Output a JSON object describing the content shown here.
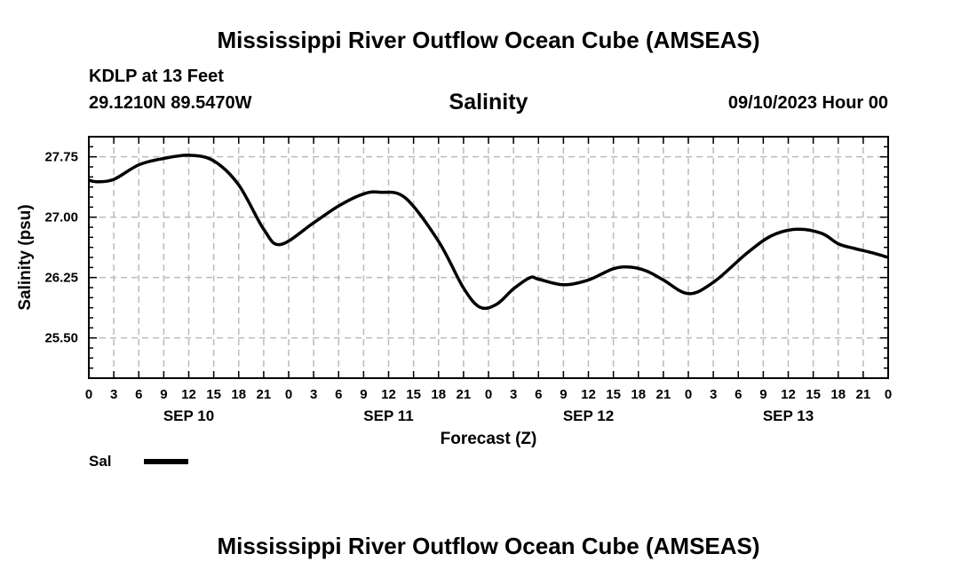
{
  "page_title": "Mississippi River Outflow Ocean Cube (AMSEAS)",
  "footer_title": "Mississippi River Outflow Ocean Cube (AMSEAS)",
  "station": "KDLP at 13 Feet",
  "coordinates": "29.1210N  89.5470W",
  "variable_title": "Salinity",
  "datetime": "09/10/2023 Hour 00",
  "colors": {
    "line": "#000000",
    "grid": "#bbbbbb",
    "frame": "#000000"
  },
  "chart_data": {
    "type": "line",
    "title": "Salinity",
    "xlabel": "Forecast (Z)",
    "ylabel": "Salinity (psu)",
    "xlim": [
      0,
      96
    ],
    "ylim": [
      25.0,
      28.0
    ],
    "yticks": [
      25.5,
      26.25,
      27.0,
      27.75
    ],
    "ytick_labels": [
      "25.50",
      "26.25",
      "27.00",
      "27.75"
    ],
    "xticks": [
      0,
      3,
      6,
      9,
      12,
      15,
      18,
      21,
      24,
      27,
      30,
      33,
      36,
      39,
      42,
      45,
      48,
      51,
      54,
      57,
      60,
      63,
      66,
      69,
      72,
      75,
      78,
      81,
      84,
      87,
      90,
      93,
      96
    ],
    "xtick_labels": [
      "0",
      "3",
      "6",
      "9",
      "12",
      "15",
      "18",
      "21",
      "0",
      "3",
      "6",
      "9",
      "12",
      "15",
      "18",
      "21",
      "0",
      "3",
      "6",
      "9",
      "12",
      "15",
      "18",
      "21",
      "0",
      "3",
      "6",
      "9",
      "12",
      "15",
      "18",
      "21",
      "0"
    ],
    "day_labels": [
      {
        "x": 12,
        "label": "SEP 10"
      },
      {
        "x": 36,
        "label": "SEP 11"
      },
      {
        "x": 60,
        "label": "SEP 12"
      },
      {
        "x": 84,
        "label": "SEP 13"
      }
    ],
    "grid": true,
    "legend": "bottom-left",
    "series": [
      {
        "name": "Sal",
        "x": [
          0,
          1,
          3,
          6,
          9,
          12,
          15,
          18,
          21,
          23,
          27,
          30,
          33,
          35,
          38,
          42,
          45,
          47,
          49,
          51,
          53,
          54,
          57,
          60,
          63,
          65,
          67,
          69,
          72,
          75,
          79,
          82,
          85,
          88,
          90,
          92,
          94,
          96
        ],
        "values": [
          27.46,
          27.44,
          27.47,
          27.65,
          27.73,
          27.77,
          27.7,
          27.4,
          26.85,
          26.66,
          26.93,
          27.14,
          27.29,
          27.31,
          27.24,
          26.7,
          26.12,
          25.88,
          25.92,
          26.11,
          26.25,
          26.23,
          26.16,
          26.22,
          26.36,
          26.38,
          26.33,
          26.22,
          26.05,
          26.19,
          26.55,
          26.77,
          26.85,
          26.8,
          26.67,
          26.61,
          26.56,
          26.5
        ]
      }
    ]
  }
}
